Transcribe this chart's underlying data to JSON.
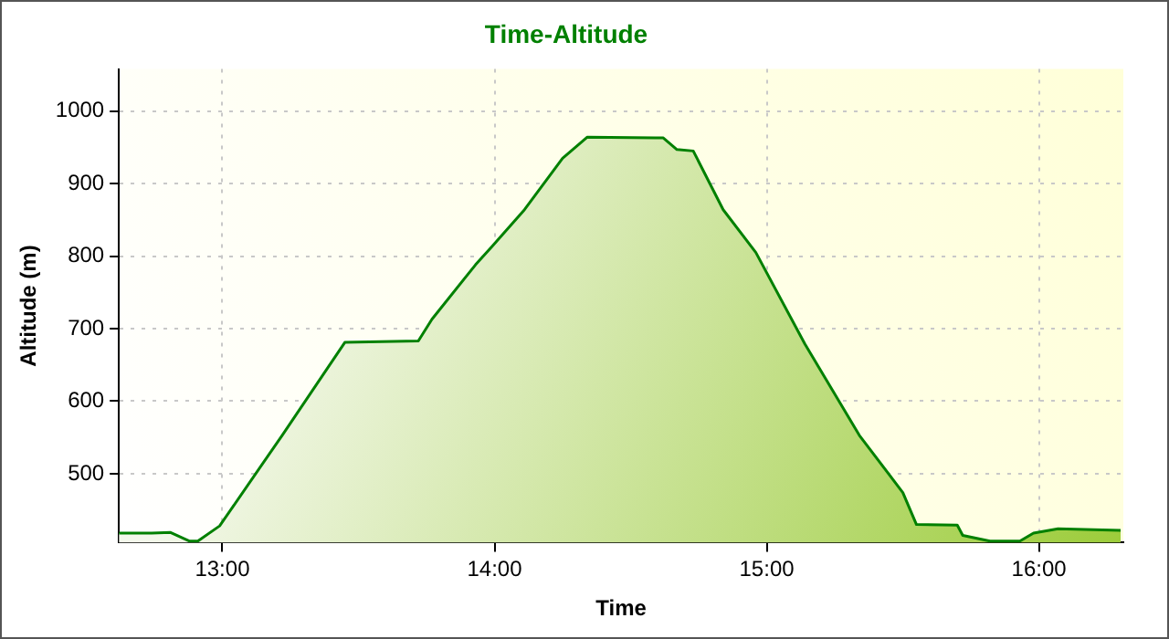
{
  "chart_data": {
    "type": "area",
    "title": "Time-Altitude",
    "xlabel": "Time",
    "ylabel": "Altitude (m)",
    "x": [
      12.62,
      12.74,
      12.81,
      12.88,
      12.91,
      12.99,
      13.22,
      13.45,
      13.72,
      13.77,
      13.93,
      13.99,
      14.11,
      14.25,
      14.34,
      14.59,
      14.62,
      14.67,
      14.73,
      14.84,
      14.96,
      15.14,
      15.34,
      15.5,
      15.55,
      15.7,
      15.72,
      15.82,
      15.93,
      15.98,
      16.07,
      16.3
    ],
    "series": [
      {
        "color": "#008000",
        "values": [
          418,
          418,
          419,
          407,
          407,
          428,
          553,
          681,
          683,
          713,
          788,
          813,
          864,
          935,
          964,
          963,
          963,
          947,
          945,
          864,
          805,
          679,
          553,
          474,
          430,
          429,
          415,
          407,
          407,
          418,
          424,
          422
        ]
      }
    ],
    "xlim": [
      12.62,
      16.31
    ],
    "xticks": [
      {
        "value": 13,
        "label": "13:00"
      },
      {
        "value": 14,
        "label": "14:00"
      },
      {
        "value": 15,
        "label": "15:00"
      },
      {
        "value": 16,
        "label": "16:00"
      }
    ],
    "ylim": [
      405,
      1058
    ],
    "yticks": [
      500,
      600,
      700,
      800,
      900,
      1000
    ],
    "grid": true,
    "legend": false,
    "marker": "none"
  }
}
